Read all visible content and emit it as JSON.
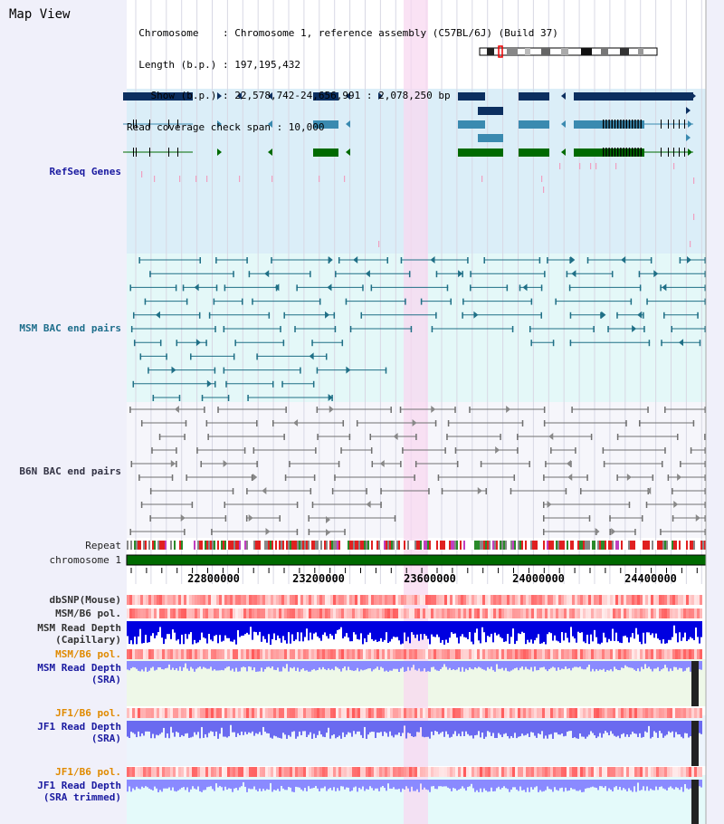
{
  "view": {
    "title": "Map View",
    "header_lines": [
      "  Chromosome    : Chromosome 1, reference assembly (C57BL/6J) (Build 37)",
      "  Length (b.p.) : 197,195,432",
      "    Show (b.p.) : 22,578,742-24,656,991 : 2,078,250 bp",
      "Read coverage check span : 10,000"
    ]
  },
  "tracks": {
    "refseq": "RefSeq Genes",
    "msm_bac": "MSM BAC end pairs",
    "b6n_bac": "B6N BAC end pairs",
    "repeat": "Repeat",
    "chromosome": "chromosome 1",
    "dbsnp": "dbSNP(Mouse)",
    "msm_b6_pol_1": "MSM/B6 pol.",
    "msm_read_depth_cap": "MSM Read Depth\n(Capillary)",
    "msm_b6_pol_2": "MSM/B6 pol.",
    "msm_read_depth_sra": "MSM Read Depth\n(SRA)",
    "jf1_b6_pol_1": "JF1/B6 pol.",
    "jf1_read_depth_sra": "JF1 Read Depth\n(SRA)",
    "jf1_b6_pol_2": "JF1/B6 pol.",
    "jf1_read_depth_trim": "JF1 Read Depth\n(SRA trimmed)"
  },
  "axis": {
    "ticks": [
      "22800000",
      "23200000",
      "23600000",
      "24000000",
      "24400000"
    ]
  },
  "colors": {
    "refseq_bg": "#dbeef8",
    "msm_bg": "#e4f8f8",
    "b6n_bg": "#f6f6fb",
    "highlight": "#f8d8f0",
    "navy": "#0c2f60",
    "steel": "#3a8ab0",
    "green": "#006a00",
    "msm_line": "#1f6f86",
    "b6n_line": "#707070",
    "depth_blue": "#0000e0",
    "depth_light": "#7878f0"
  }
}
